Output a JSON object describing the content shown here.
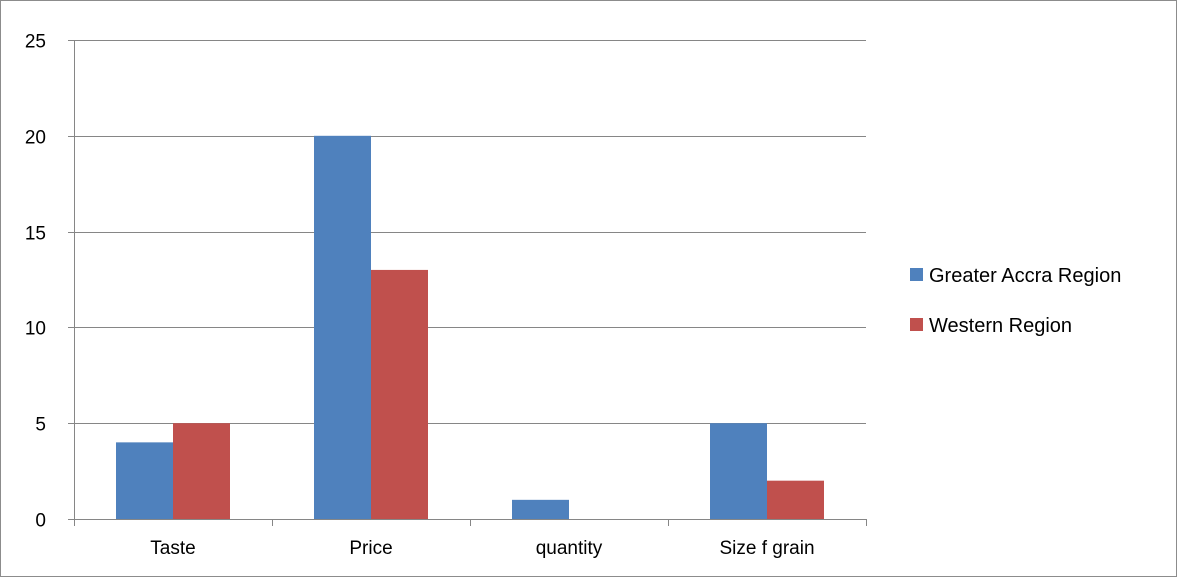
{
  "chart_data": {
    "type": "bar",
    "categories": [
      "Taste",
      "Price",
      "quantity",
      "Size f grain"
    ],
    "series": [
      {
        "name": "Greater Accra Region",
        "color": "#4f81bd",
        "values": [
          4,
          20,
          1,
          5
        ]
      },
      {
        "name": "Western Region",
        "color": "#c0504d",
        "values": [
          5,
          13,
          0,
          2
        ]
      }
    ],
    "ylim": [
      0,
      25
    ],
    "yticks": [
      0,
      5,
      10,
      15,
      20,
      25
    ],
    "grid": true,
    "legend_position": "right"
  }
}
